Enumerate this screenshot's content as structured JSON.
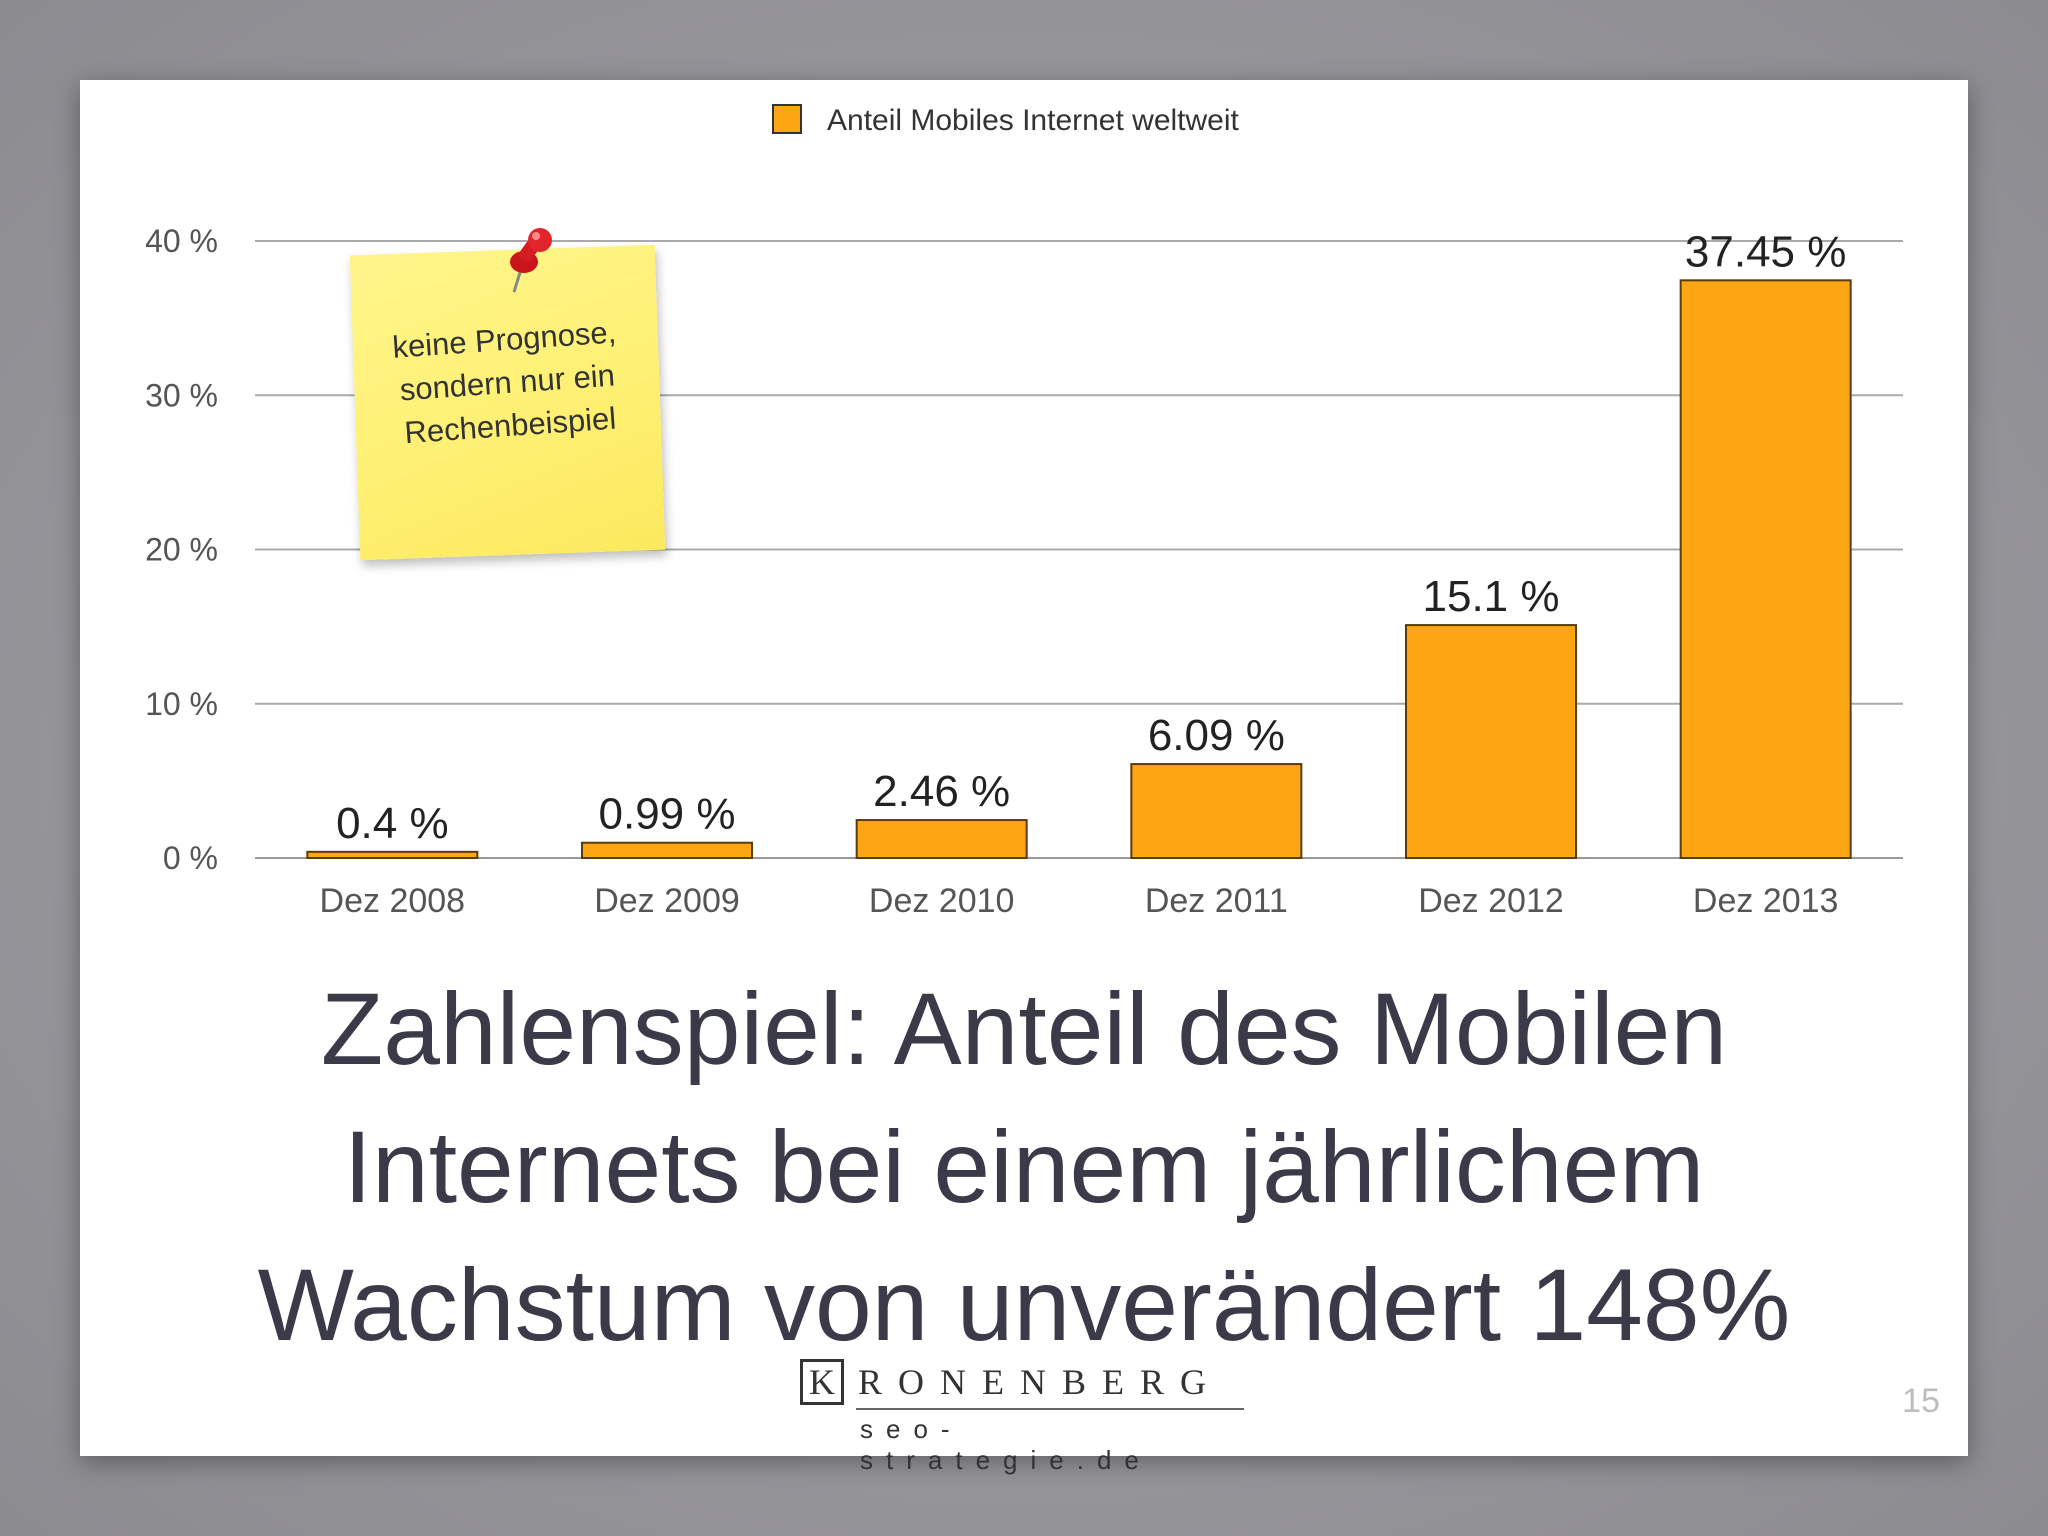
{
  "chart_data": {
    "type": "bar",
    "categories": [
      "Dez 2008",
      "Dez 2009",
      "Dez 2010",
      "Dez 2011",
      "Dez 2012",
      "Dez 2013"
    ],
    "series": [
      {
        "name": "Anteil Mobiles Internet weltweit",
        "values": [
          0.4,
          0.99,
          2.46,
          6.09,
          15.1,
          37.45
        ],
        "labels": [
          "0.4 %",
          "0.99 %",
          "2.46 %",
          "6.09 %",
          "15.1 %",
          "37.45 %"
        ],
        "color": "#fca614"
      }
    ],
    "ylim": [
      0,
      40
    ],
    "yticks": [
      0,
      10,
      20,
      30,
      40
    ],
    "ytick_labels": [
      "0 %",
      "10 %",
      "20 %",
      "30 %",
      "40 %"
    ],
    "grid": true,
    "legend": "top-center",
    "colors": {
      "bar_fill": "#fca614",
      "bar_stroke": "#5a3b0a",
      "grid": "#aaaaaa"
    }
  },
  "note": {
    "lines": [
      "keine Prognose,",
      "sondern nur ein",
      "Rechenbeispiel"
    ]
  },
  "title": {
    "lines": [
      "Zahlenspiel: Anteil des Mobilen",
      "Internets bei einem jährlichem",
      "Wachstum von unverändert 148%"
    ]
  },
  "logo": {
    "initial": "K",
    "rest": "RONENBERG",
    "sub": "seo-strategie.de"
  },
  "page_number": "15"
}
